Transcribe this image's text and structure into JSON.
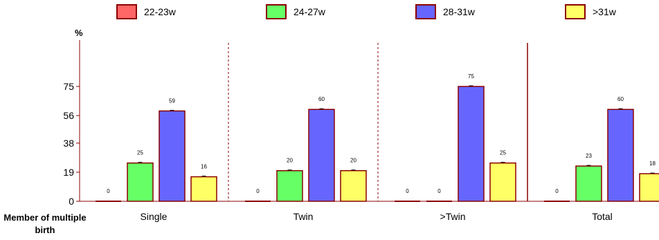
{
  "chart_data": {
    "type": "bar",
    "ylabel": "%",
    "xlabel": "Member of multiple birth",
    "ylim": [
      0,
      100
    ],
    "yticks": [
      0,
      19,
      38,
      56,
      75
    ],
    "categories": [
      "Single",
      "Twin",
      ">Twin",
      "Total"
    ],
    "series": [
      {
        "name": "22-23w",
        "color": "#ff6666",
        "values": [
          0,
          0,
          0,
          0
        ]
      },
      {
        "name": "24-27w",
        "color": "#66ff66",
        "values": [
          25,
          20,
          0,
          23
        ]
      },
      {
        "name": "28-31w",
        "color": "#6666ff",
        "values": [
          59,
          60,
          75,
          60
        ]
      },
      {
        "name": ">31w",
        "color": "#ffff66",
        "values": [
          16,
          20,
          25,
          18
        ]
      }
    ],
    "legend_position": "top",
    "grid": false
  }
}
